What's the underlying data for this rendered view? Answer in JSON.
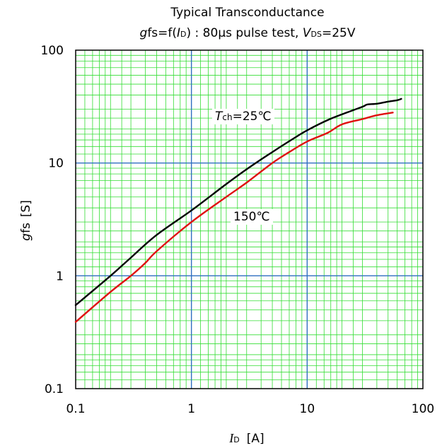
{
  "chart_data": {
    "type": "line",
    "title": "Typical Transconductance",
    "subtitle": {
      "part1_italic": "g",
      "part2": "fs=f(",
      "part3_italic": "I",
      "part4_sub": "D",
      "part5": ") : 80µs pulse test, ",
      "part6_italic": "V",
      "part7_sub": "DS",
      "part8": "=25V"
    },
    "xlabel": {
      "italic": "I",
      "sub": "D",
      "unit": "[A]"
    },
    "ylabel": {
      "italic": "g",
      "rest": "fs",
      "unit": "[S]"
    },
    "x_scale": "log",
    "y_scale": "log",
    "xlim": [
      0.1,
      100
    ],
    "ylim": [
      0.1,
      100
    ],
    "x_tick_labels": [
      "0.1",
      "1",
      "10",
      "100"
    ],
    "y_tick_labels": [
      "0.1",
      "1",
      "10",
      "100"
    ],
    "grid": true,
    "grid_minor_color": "#33dd33",
    "grid_major_color": "#3070c0",
    "annotations": [
      {
        "italic": "T",
        "sub": "ch",
        "rest": "=25℃"
      },
      {
        "italic": "",
        "sub": "",
        "rest": "150℃"
      }
    ],
    "series": [
      {
        "color": "#000000",
        "x": [
          0.1,
          0.2,
          0.3,
          0.5,
          1,
          2,
          3,
          5,
          8,
          10,
          15,
          20,
          30,
          33,
          40,
          50,
          60,
          65
        ],
        "y": [
          0.55,
          1.0,
          1.45,
          2.3,
          3.8,
          6.5,
          8.8,
          12.5,
          17.0,
          19.5,
          24.0,
          27.0,
          31.5,
          33.0,
          33.5,
          35.0,
          36.0,
          37.0
        ]
      },
      {
        "color": "#e01010",
        "x": [
          0.1,
          0.2,
          0.3,
          0.4,
          0.5,
          1,
          2,
          3,
          5,
          7,
          10,
          15,
          20,
          30,
          40,
          55
        ],
        "y": [
          0.39,
          0.72,
          1.0,
          1.3,
          1.65,
          3.0,
          5.0,
          6.7,
          10.0,
          12.5,
          15.5,
          18.5,
          22.0,
          24.5,
          26.5,
          28.0
        ]
      }
    ]
  }
}
